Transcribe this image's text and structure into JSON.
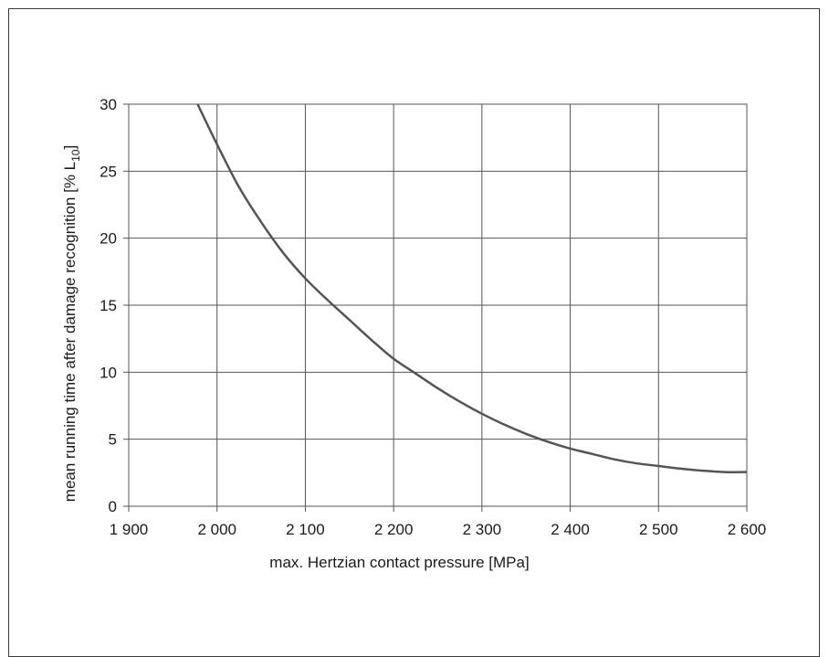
{
  "chart_data": {
    "type": "line",
    "title": "",
    "xlabel": "max. Hertzian contact pressure [MPa]",
    "ylabel": "mean running time after damage recognition [% L",
    "ylabel_subscript": "10",
    "ylabel_suffix": "]",
    "xlim": [
      1900,
      2600
    ],
    "ylim": [
      0,
      30
    ],
    "x_ticks": [
      1900,
      2000,
      2100,
      2200,
      2300,
      2400,
      2500,
      2600
    ],
    "x_tick_labels": [
      "1 900",
      "2 000",
      "2 100",
      "2 200",
      "2 300",
      "2 400",
      "2 500",
      "2 600"
    ],
    "y_ticks": [
      0,
      5,
      10,
      15,
      20,
      25,
      30
    ],
    "y_tick_labels": [
      "0",
      "5",
      "10",
      "15",
      "20",
      "25",
      "30"
    ],
    "grid": true,
    "legend": "none",
    "series": [
      {
        "color": "#555555",
        "x": [
          1978,
          2000,
          2025,
          2050,
          2075,
          2100,
          2125,
          2150,
          2175,
          2200,
          2225,
          2250,
          2275,
          2300,
          2325,
          2350,
          2375,
          2400,
          2425,
          2450,
          2475,
          2500,
          2525,
          2550,
          2575,
          2600
        ],
        "y": [
          30,
          27,
          23.8,
          21.2,
          18.9,
          17,
          15.4,
          13.9,
          12.4,
          11,
          9.9,
          8.8,
          7.8,
          6.9,
          6.1,
          5.4,
          4.8,
          4.3,
          3.9,
          3.5,
          3.2,
          3,
          2.8,
          2.65,
          2.55,
          2.55
        ]
      }
    ]
  }
}
